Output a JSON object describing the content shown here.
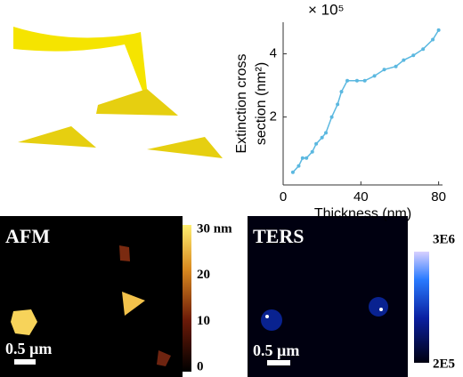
{
  "chart_data": {
    "type": "line",
    "x_label": "Thickness (nm)",
    "y_label": [
      "Extinction cross",
      "section (nm²)"
    ],
    "y_multiplier": "× 10⁵",
    "x": [
      5,
      8,
      10,
      12,
      15,
      17,
      20,
      22,
      25,
      28,
      30,
      33,
      38,
      42,
      47,
      52,
      58,
      62,
      67,
      72,
      77,
      80
    ],
    "series": [
      {
        "color": "#5bb8e0",
        "values": [
          0.25,
          0.45,
          0.7,
          0.7,
          0.9,
          1.15,
          1.35,
          1.5,
          2.0,
          2.4,
          2.8,
          3.15,
          3.15,
          3.15,
          3.3,
          3.5,
          3.6,
          3.8,
          3.95,
          4.15,
          4.45,
          4.75
        ]
      }
    ],
    "xlim": [
      0,
      82
    ],
    "xticks": [
      0,
      40,
      80
    ],
    "ylim": [
      -0.15,
      5
    ],
    "yticks": [
      2,
      4
    ]
  },
  "afm": {
    "label": "AFM",
    "scale_bar": "0.5 µm",
    "colorbar_lim": [
      0,
      30
    ],
    "colorbar_ticks": [
      0,
      10,
      20,
      {
        "value": 30,
        "label": "30 nm"
      }
    ]
  },
  "ters": {
    "label": "TERS",
    "scale_bar": "0.5 µm",
    "colorbar_lim": [
      200000,
      3000000
    ],
    "colorbar_ticks": [
      {
        "value": 200000,
        "label": "2E5"
      },
      {
        "value": 3000000,
        "label": "3E6"
      }
    ]
  }
}
